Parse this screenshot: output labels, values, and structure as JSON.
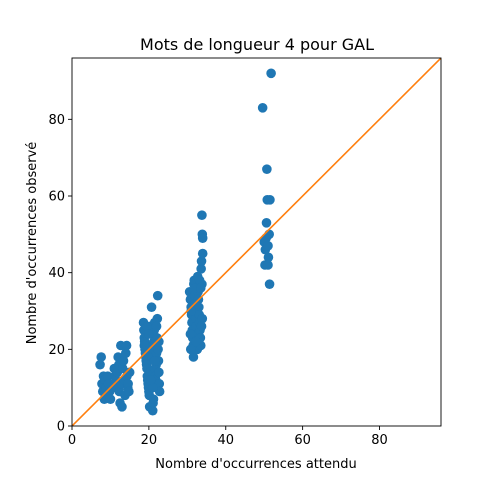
{
  "chart_data": {
    "type": "scatter",
    "title": "Mots de longueur 4 pour GAL",
    "xlabel": "Nombre d'occurrences attendu",
    "ylabel": "Nombre d'occurrences observé",
    "xlim": [
      0,
      96
    ],
    "ylim": [
      0,
      96
    ],
    "xticks": [
      0,
      20,
      40,
      60,
      80
    ],
    "yticks": [
      0,
      20,
      40,
      60,
      80
    ],
    "grid": false,
    "colors": {
      "points": "#1f77b4",
      "reference_line": "#ff7f0e"
    },
    "reference_line": {
      "from": [
        0,
        0
      ],
      "to": [
        96,
        96
      ]
    },
    "series": [
      {
        "points": [
          [
            7.3,
            16
          ],
          [
            7.6,
            18
          ],
          [
            7.8,
            11
          ],
          [
            8.0,
            9
          ],
          [
            8.2,
            13
          ],
          [
            8.4,
            7
          ],
          [
            8.6,
            12
          ],
          [
            8.8,
            10
          ],
          [
            9.0,
            8
          ],
          [
            9.3,
            13
          ],
          [
            9.5,
            11
          ],
          [
            9.8,
            9
          ],
          [
            10.0,
            7
          ],
          [
            11.0,
            15
          ],
          [
            11.2,
            13
          ],
          [
            11.4,
            12
          ],
          [
            11.6,
            10
          ],
          [
            11.8,
            14
          ],
          [
            12.0,
            18
          ],
          [
            12.2,
            16
          ],
          [
            12.3,
            9
          ],
          [
            12.5,
            6
          ],
          [
            12.7,
            21
          ],
          [
            12.9,
            11
          ],
          [
            13.0,
            5
          ],
          [
            13.2,
            15
          ],
          [
            13.4,
            17
          ],
          [
            13.6,
            12
          ],
          [
            13.8,
            8
          ],
          [
            14.0,
            19
          ],
          [
            14.2,
            21
          ],
          [
            14.3,
            13
          ],
          [
            14.5,
            10
          ],
          [
            14.6,
            11
          ],
          [
            14.8,
            9
          ],
          [
            15.0,
            14
          ],
          [
            18.6,
            27
          ],
          [
            18.7,
            25
          ],
          [
            18.8,
            23
          ],
          [
            18.9,
            22
          ],
          [
            19.0,
            20
          ],
          [
            19.1,
            19
          ],
          [
            19.2,
            18
          ],
          [
            19.3,
            17
          ],
          [
            19.4,
            16
          ],
          [
            19.5,
            15
          ],
          [
            19.6,
            13
          ],
          [
            19.7,
            12
          ],
          [
            19.8,
            11
          ],
          [
            19.9,
            10
          ],
          [
            20.0,
            9
          ],
          [
            20.1,
            8
          ],
          [
            20.2,
            5
          ],
          [
            20.3,
            14
          ],
          [
            20.4,
            26
          ],
          [
            20.5,
            24
          ],
          [
            20.6,
            21
          ],
          [
            20.7,
            31
          ],
          [
            20.8,
            20
          ],
          [
            20.9,
            18
          ],
          [
            21.0,
            4
          ],
          [
            21.1,
            6
          ],
          [
            21.2,
            7
          ],
          [
            21.3,
            22
          ],
          [
            21.4,
            25
          ],
          [
            21.5,
            27
          ],
          [
            21.6,
            15
          ],
          [
            21.7,
            13
          ],
          [
            21.8,
            12
          ],
          [
            21.9,
            16
          ],
          [
            22.0,
            19
          ],
          [
            22.1,
            23
          ],
          [
            22.2,
            28
          ],
          [
            22.3,
            34
          ],
          [
            22.4,
            20
          ],
          [
            22.5,
            17
          ],
          [
            22.6,
            14
          ],
          [
            22.7,
            11
          ],
          [
            22.8,
            9
          ],
          [
            21.0,
            10
          ],
          [
            20.5,
            12
          ],
          [
            21.5,
            17
          ],
          [
            19.5,
            26
          ],
          [
            20.0,
            24
          ],
          [
            22.0,
            26
          ],
          [
            18.8,
            21
          ],
          [
            22.6,
            22
          ],
          [
            30.6,
            35
          ],
          [
            30.8,
            33
          ],
          [
            31.0,
            31
          ],
          [
            31.1,
            29
          ],
          [
            31.2,
            27
          ],
          [
            31.3,
            25
          ],
          [
            31.4,
            23
          ],
          [
            31.5,
            21
          ],
          [
            31.6,
            18
          ],
          [
            31.7,
            37
          ],
          [
            31.8,
            38
          ],
          [
            31.9,
            34
          ],
          [
            32.0,
            32
          ],
          [
            32.1,
            30
          ],
          [
            32.2,
            28
          ],
          [
            32.3,
            26
          ],
          [
            32.4,
            24
          ],
          [
            32.5,
            22
          ],
          [
            32.6,
            20
          ],
          [
            32.7,
            39
          ],
          [
            32.8,
            35
          ],
          [
            32.9,
            33
          ],
          [
            33.0,
            31
          ],
          [
            33.1,
            29
          ],
          [
            33.2,
            27
          ],
          [
            33.3,
            25
          ],
          [
            33.4,
            23
          ],
          [
            33.5,
            21
          ],
          [
            33.6,
            41
          ],
          [
            33.7,
            43
          ],
          [
            33.8,
            55
          ],
          [
            33.9,
            50
          ],
          [
            34.0,
            49
          ],
          [
            33.8,
            37
          ],
          [
            33.9,
            28
          ],
          [
            33.7,
            26
          ],
          [
            31.0,
            30
          ],
          [
            32.0,
            36
          ],
          [
            30.8,
            24
          ],
          [
            33.2,
            38
          ],
          [
            34.0,
            45
          ],
          [
            33.5,
            36
          ],
          [
            32.2,
            22
          ],
          [
            30.9,
            20
          ],
          [
            49.6,
            83
          ],
          [
            50.0,
            48
          ],
          [
            50.2,
            42
          ],
          [
            50.3,
            46
          ],
          [
            50.5,
            49
          ],
          [
            50.6,
            53
          ],
          [
            50.7,
            67
          ],
          [
            50.8,
            59
          ],
          [
            51.0,
            42
          ],
          [
            51.1,
            44
          ],
          [
            51.3,
            50
          ],
          [
            51.4,
            37
          ],
          [
            51.5,
            59
          ],
          [
            51.0,
            47
          ],
          [
            51.8,
            92
          ]
        ]
      }
    ]
  }
}
